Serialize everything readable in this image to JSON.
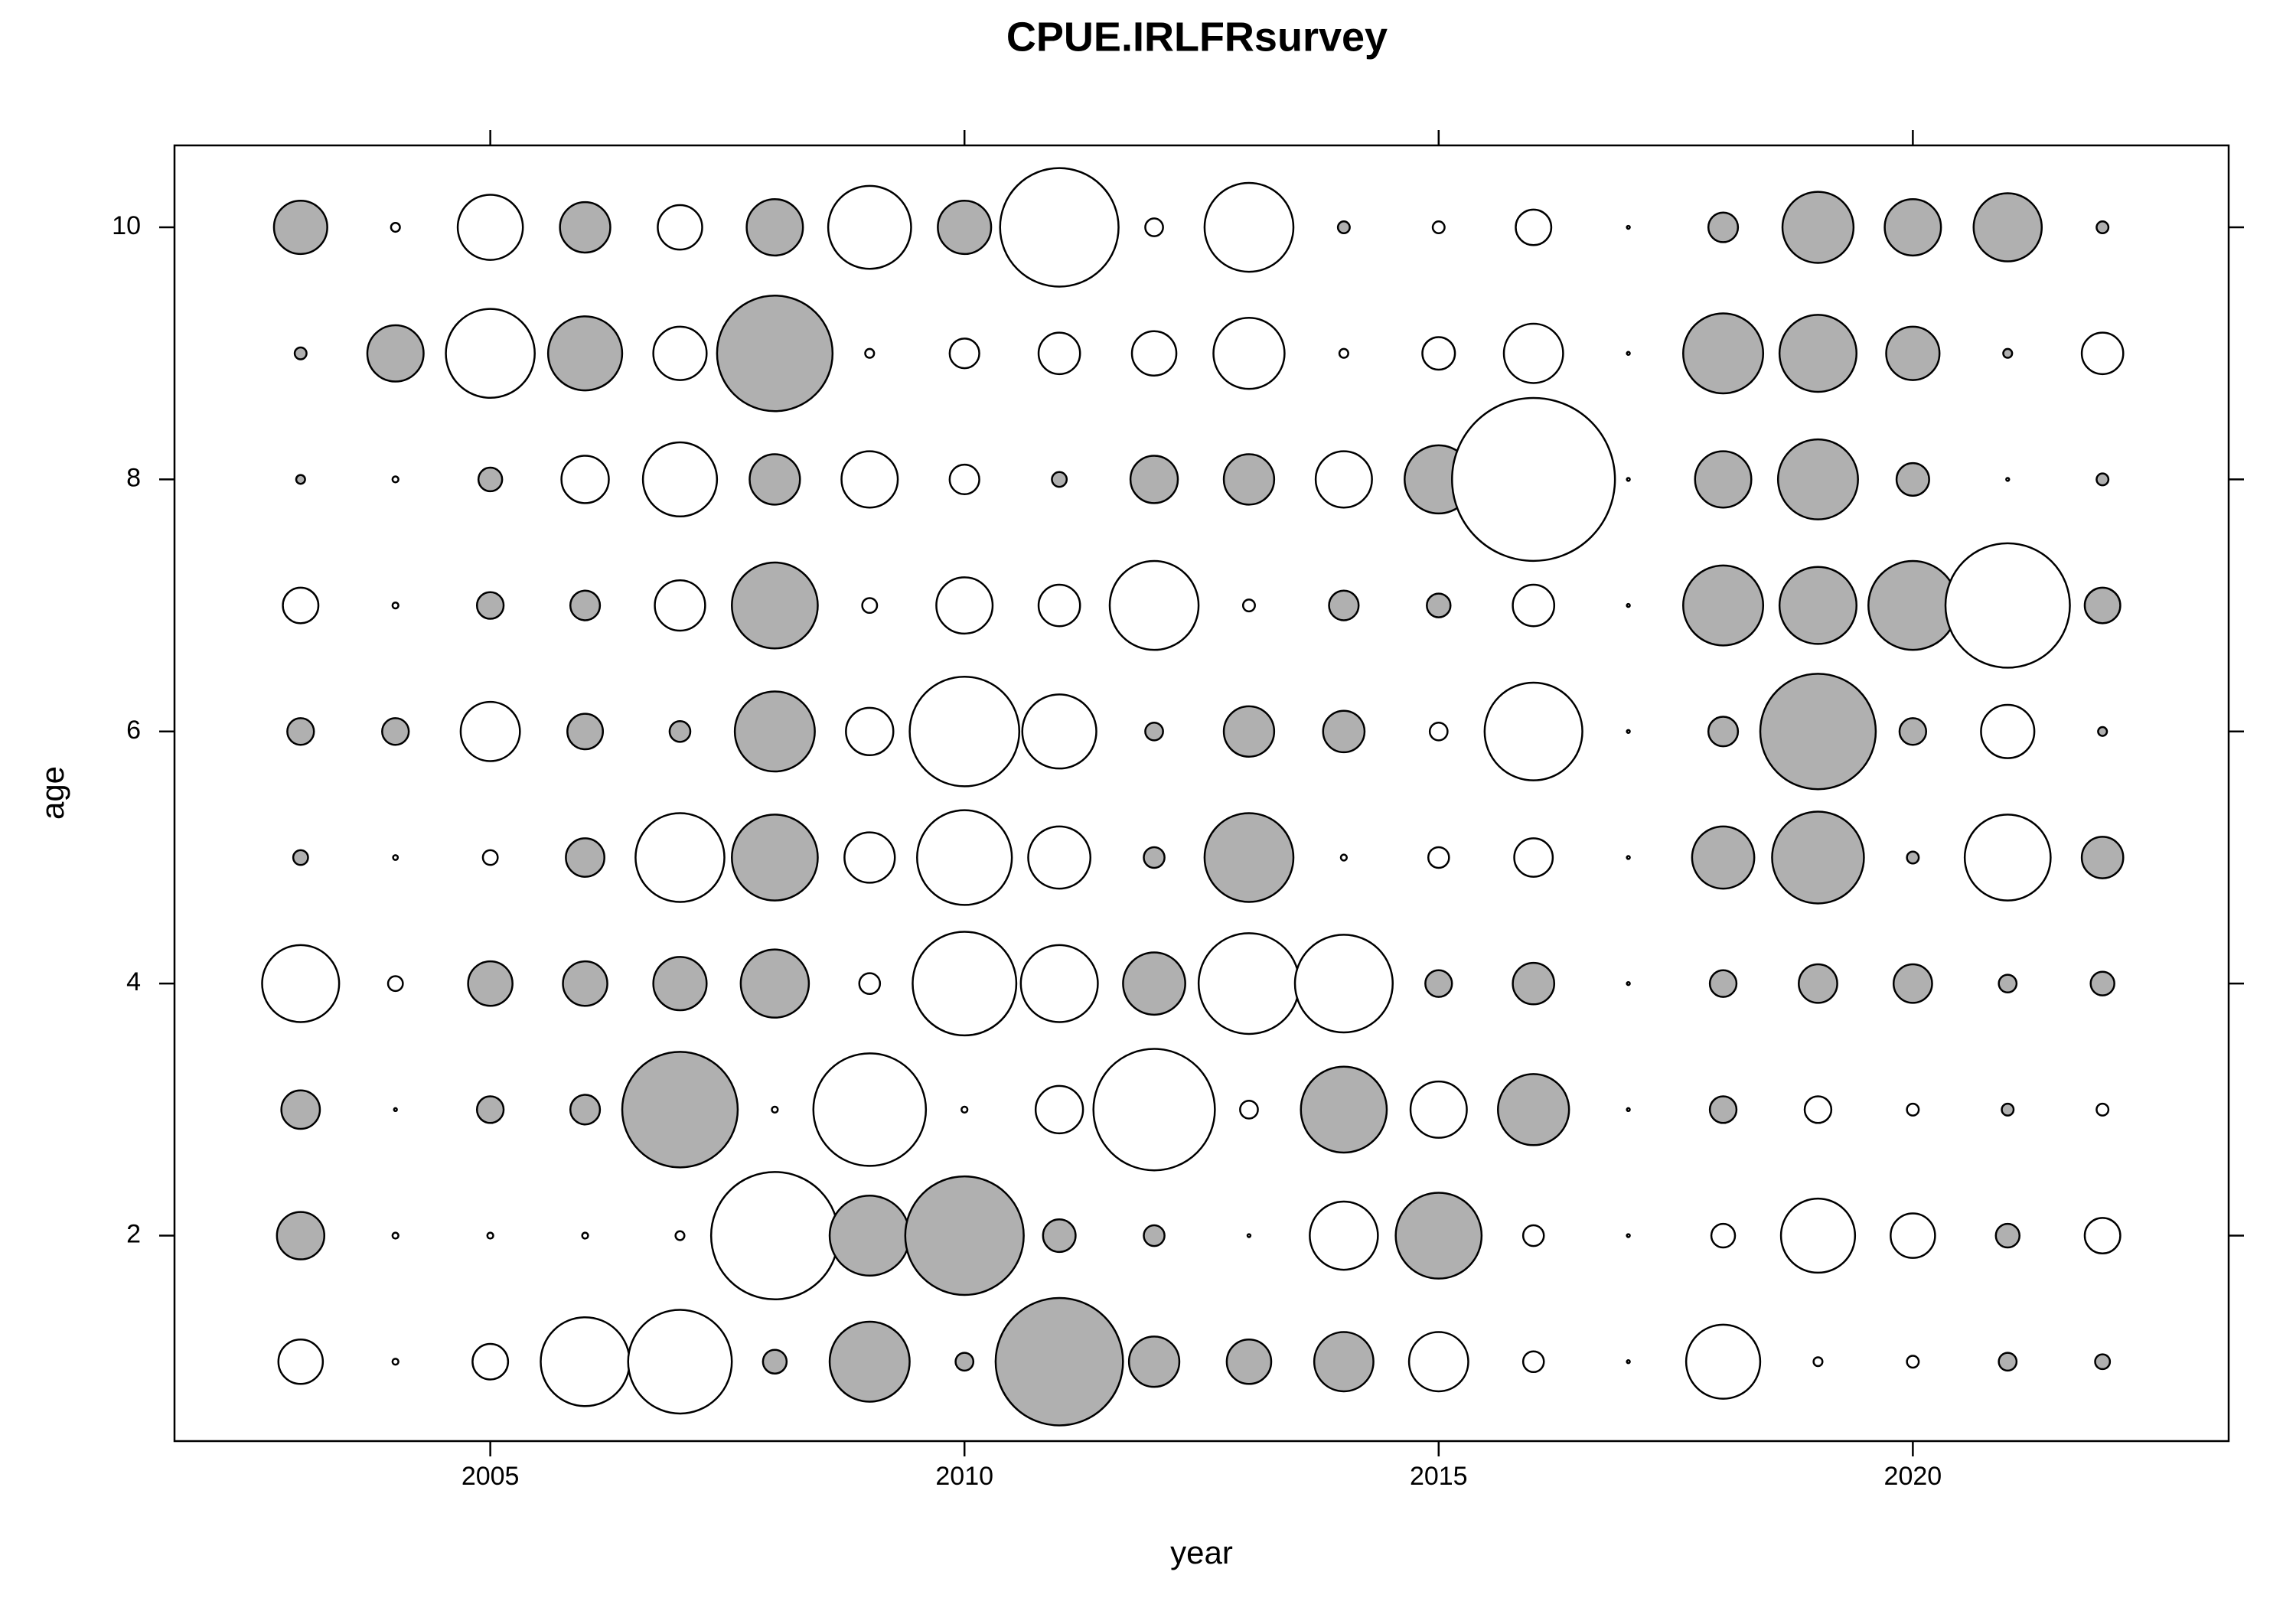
{
  "chart_data": {
    "type": "bubble",
    "title": "CPUE.IRLFRsurvey",
    "x_label": "year",
    "y_label": "age",
    "x": [
      2003,
      2004,
      2005,
      2006,
      2007,
      2008,
      2009,
      2010,
      2011,
      2012,
      2013,
      2014,
      2015,
      2016,
      2017,
      2018,
      2019,
      2020,
      2021,
      2022
    ],
    "y": [
      1,
      2,
      3,
      4,
      5,
      6,
      7,
      8,
      9,
      10
    ],
    "values": [
      [
        -0.75,
        -0.1,
        -0.6,
        -1.5,
        -1.75,
        0.4,
        1.35,
        0.3,
        2.15,
        0.85,
        0.75,
        1.0,
        -1.0,
        -0.35,
        -0.05,
        -1.25,
        -0.15,
        -0.2,
        0.3,
        0.25
      ],
      [
        0.8,
        -0.1,
        -0.1,
        -0.1,
        -0.15,
        -2.15,
        1.35,
        2.0,
        0.55,
        0.35,
        -0.05,
        -1.15,
        1.45,
        -0.35,
        -0.05,
        -0.4,
        -1.25,
        -0.75,
        0.4,
        -0.6
      ],
      [
        0.65,
        -0.05,
        0.45,
        0.5,
        1.95,
        -0.1,
        -1.9,
        -0.1,
        -0.8,
        -2.05,
        -0.3,
        1.45,
        -0.95,
        1.2,
        -0.05,
        0.45,
        -0.45,
        -0.2,
        0.2,
        -0.2
      ],
      [
        -1.3,
        -0.25,
        0.75,
        0.75,
        0.9,
        1.15,
        -0.35,
        -1.75,
        -1.3,
        1.05,
        -1.7,
        -1.65,
        0.45,
        0.7,
        -0.05,
        0.45,
        0.65,
        0.65,
        0.3,
        0.4
      ],
      [
        0.25,
        -0.08,
        -0.25,
        0.65,
        -1.5,
        1.45,
        -0.85,
        -1.6,
        -1.05,
        0.35,
        1.5,
        -0.1,
        -0.35,
        -0.65,
        -0.05,
        1.05,
        1.55,
        0.2,
        -1.45,
        0.7
      ],
      [
        0.45,
        0.45,
        -1.0,
        0.6,
        0.35,
        1.35,
        -0.8,
        -1.85,
        -1.25,
        0.3,
        0.85,
        0.7,
        -0.3,
        -1.65,
        -0.05,
        0.5,
        1.95,
        0.45,
        -0.9,
        0.15
      ],
      [
        -0.6,
        -0.1,
        0.45,
        0.5,
        -0.85,
        1.45,
        -0.25,
        -0.95,
        -0.7,
        -1.5,
        -0.2,
        0.5,
        0.4,
        -0.7,
        -0.05,
        1.35,
        1.3,
        1.5,
        -2.1,
        0.6
      ],
      [
        0.15,
        -0.1,
        0.4,
        -0.8,
        -1.25,
        0.85,
        -0.95,
        -0.5,
        0.25,
        0.8,
        0.85,
        -0.95,
        1.15,
        -2.75,
        -0.05,
        0.95,
        1.35,
        0.55,
        -0.05,
        0.2
      ],
      [
        0.2,
        0.95,
        -1.5,
        1.25,
        -0.9,
        1.95,
        -0.15,
        -0.5,
        -0.7,
        -0.75,
        -1.2,
        -0.15,
        -0.55,
        -1.0,
        -0.05,
        1.35,
        1.3,
        0.9,
        0.15,
        -0.7
      ],
      [
        0.9,
        -0.15,
        -1.1,
        0.85,
        -0.75,
        0.95,
        -1.4,
        0.9,
        -2.0,
        -0.3,
        -1.5,
        0.2,
        -0.2,
        -0.6,
        -0.05,
        0.5,
        1.2,
        0.95,
        1.15,
        0.2
      ]
    ],
    "positive_color": "#b0b0b0",
    "negative_color": "#ffffff",
    "xlim": [
      2001.67,
      2023.33
    ],
    "ylim": [
      0.37,
      10.65
    ],
    "xticks": [
      2005,
      2010,
      2015,
      2020
    ],
    "yticks": [
      2,
      4,
      6,
      8,
      10
    ]
  }
}
